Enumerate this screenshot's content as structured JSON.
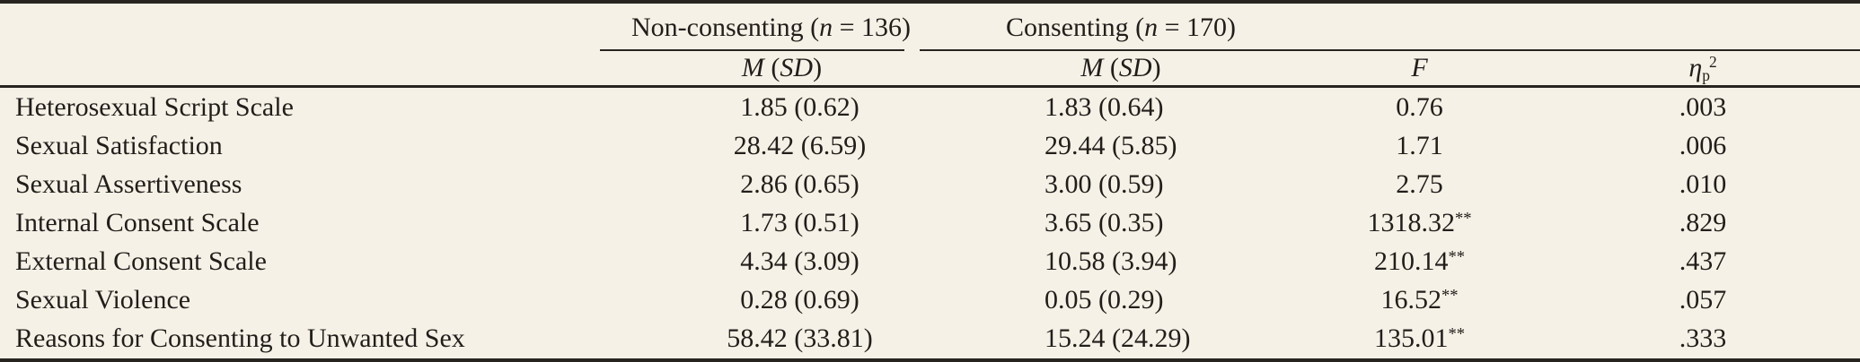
{
  "colors": {
    "background": "#f6f1e7",
    "text": "#211e1a",
    "rule": "#272420"
  },
  "table": {
    "header": {
      "group_nonconsenting": {
        "prefix": "Non-consenting (",
        "n_symbol": "n",
        "suffix": " = 136)"
      },
      "group_consenting": {
        "prefix": "Consenting (",
        "n_symbol": "n",
        "suffix": " = 170)"
      },
      "mean_sd": {
        "m": "M",
        "open_paren": " (",
        "sd": "SD",
        "close_paren": ")"
      },
      "f_label": "F",
      "eta": {
        "symbol": "η",
        "subscript": "p",
        "superscript": "2"
      }
    },
    "rows": [
      {
        "label": "Heterosexual Script Scale",
        "nonconsenting_m_sd": "1.85 (0.62)",
        "consenting_m_sd": "1.83 (0.64)",
        "f_value": "0.76",
        "f_flag": "",
        "eta_p_squared": ".003"
      },
      {
        "label": "Sexual Satisfaction",
        "nonconsenting_m_sd": "28.42 (6.59)",
        "consenting_m_sd": "29.44 (5.85)",
        "f_value": "1.71",
        "f_flag": "",
        "eta_p_squared": ".006"
      },
      {
        "label": "Sexual Assertiveness",
        "nonconsenting_m_sd": "2.86 (0.65)",
        "consenting_m_sd": "3.00 (0.59)",
        "f_value": "2.75",
        "f_flag": "",
        "eta_p_squared": ".010"
      },
      {
        "label": "Internal Consent Scale",
        "nonconsenting_m_sd": "1.73 (0.51)",
        "consenting_m_sd": "3.65 (0.35)",
        "f_value": "1318.32",
        "f_flag": "**",
        "eta_p_squared": ".829"
      },
      {
        "label": "External Consent Scale",
        "nonconsenting_m_sd": "4.34 (3.09)",
        "consenting_m_sd": "10.58 (3.94)",
        "f_value": "210.14",
        "f_flag": "**",
        "eta_p_squared": ".437"
      },
      {
        "label": "Sexual Violence",
        "nonconsenting_m_sd": "0.28 (0.69)",
        "consenting_m_sd": "0.05 (0.29)",
        "f_value": "16.52",
        "f_flag": "**",
        "eta_p_squared": ".057"
      },
      {
        "label": "Reasons for Consenting to Unwanted Sex",
        "nonconsenting_m_sd": "58.42 (33.81)",
        "consenting_m_sd": "15.24 (24.29)",
        "f_value": "135.01",
        "f_flag": "**",
        "eta_p_squared": ".333"
      }
    ]
  }
}
